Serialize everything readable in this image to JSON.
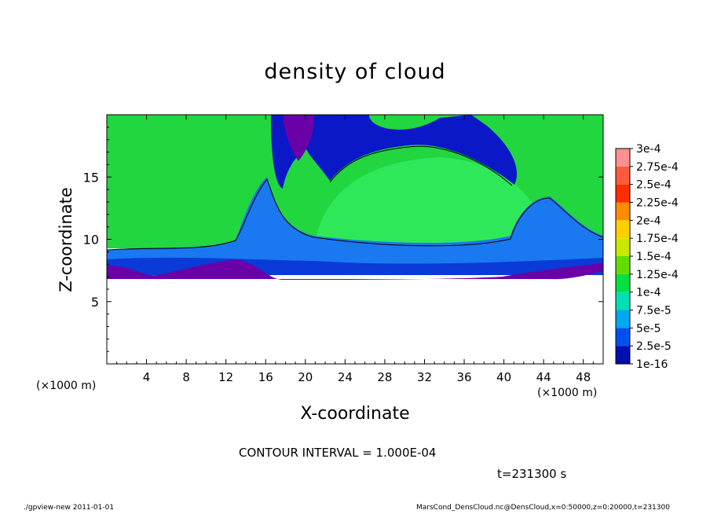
{
  "chart_data": {
    "type": "heatmap",
    "title": "density of cloud",
    "xlabel": "X-coordinate",
    "ylabel": "Z-coordinate",
    "x_unit_label": "(×1000 m)",
    "xlim": [
      0,
      50
    ],
    "ylim": [
      0,
      20
    ],
    "x_ticks": [
      4,
      8,
      12,
      16,
      20,
      24,
      28,
      32,
      36,
      40,
      44,
      48
    ],
    "y_ticks": [
      5,
      10,
      15
    ],
    "colorbar": {
      "labels": [
        "3e-4",
        "2.75e-4",
        "2.5e-4",
        "2.25e-4",
        "2e-4",
        "1.75e-4",
        "1.5e-4",
        "1.25e-4",
        "1e-4",
        "7.5e-5",
        "5e-5",
        "2.5e-5",
        "1e-16"
      ],
      "colors": [
        "#ff9090",
        "#ff5a3c",
        "#ff2d00",
        "#ff8c00",
        "#ffd000",
        "#c8e800",
        "#62dd00",
        "#00e040",
        "#00e0b4",
        "#00a8f0",
        "#0050f0",
        "#0010b0",
        "#7000a8"
      ]
    },
    "contour_interval_text": "CONTOUR INTERVAL = 1.000E-04",
    "time_text": "t=231300 s"
  },
  "footer": {
    "left": "./gpview-new   2011-01-01",
    "right": "MarsCond_DensCloud.nc@DensCloud,x=0:50000,z=0:20000,t=231300"
  }
}
